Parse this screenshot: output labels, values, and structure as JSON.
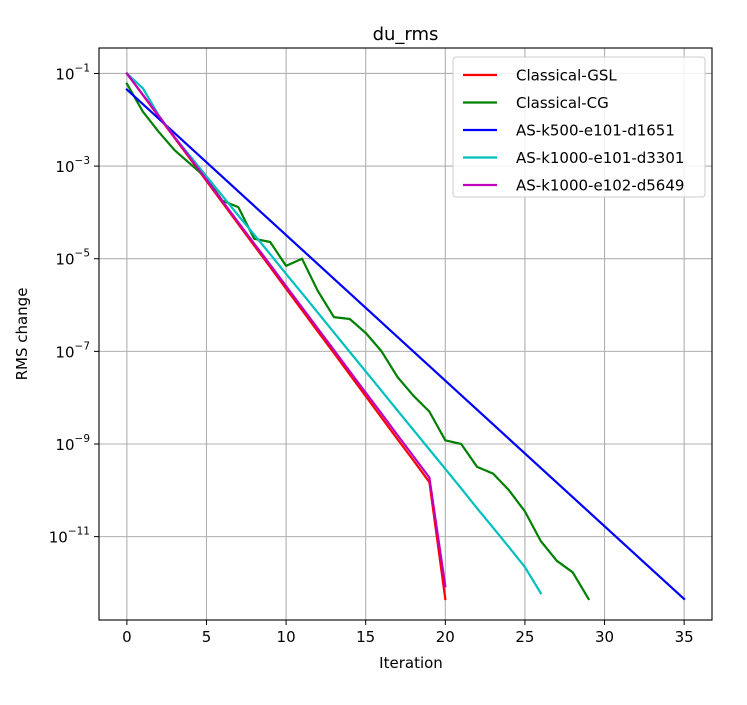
{
  "chart_data": {
    "type": "line",
    "title": "du_rms",
    "xlabel": "Iteration",
    "ylabel": "RMS change",
    "xlim": [
      -1.75,
      36.75
    ],
    "ylim_log10": [
      -12.8,
      -0.45
    ],
    "yscale": "log",
    "grid": true,
    "legend_position": "top-right",
    "x_ticks": [
      0,
      5,
      10,
      15,
      20,
      25,
      30,
      35
    ],
    "x_tick_labels": [
      "0",
      "5",
      "10",
      "15",
      "20",
      "25",
      "30",
      "35"
    ],
    "y_ticks": [
      {
        "base": "10",
        "exp": "−1",
        "value": 0.1
      },
      {
        "base": "10",
        "exp": "−3",
        "value": 0.001
      },
      {
        "base": "10",
        "exp": "−5",
        "value": 1e-05
      },
      {
        "base": "10",
        "exp": "−7",
        "value": 1e-07
      },
      {
        "base": "10",
        "exp": "−9",
        "value": 1e-09
      },
      {
        "base": "10",
        "exp": "−11",
        "value": 1e-11
      }
    ],
    "series": [
      {
        "name": "Classical-GSL",
        "color": "#ff0000",
        "x": [
          0,
          1,
          2,
          3,
          4,
          5,
          6,
          7,
          8,
          9,
          10,
          11,
          12,
          13,
          14,
          15,
          16,
          17,
          18,
          19,
          20
        ],
        "y": [
          0.1,
          0.0343,
          0.0118,
          0.00404,
          0.00139,
          0.000476,
          0.000163,
          5.6e-05,
          1.92e-05,
          6.6e-06,
          2.26e-06,
          7.8e-07,
          2.67e-07,
          9.2e-08,
          3.15e-08,
          1.08e-08,
          3.7e-09,
          1.27e-09,
          4.4e-10,
          1.5e-10,
          4.5e-13
        ]
      },
      {
        "name": "Classical-CG",
        "color": "#008000",
        "x": [
          0,
          1,
          2,
          3,
          4,
          5,
          6,
          7,
          8,
          9,
          10,
          11,
          12,
          13,
          14,
          15,
          16,
          17,
          18,
          19,
          20,
          21,
          22,
          23,
          24,
          25,
          26,
          27,
          28,
          29
        ],
        "y": [
          0.06,
          0.015,
          0.0055,
          0.0022,
          0.0011,
          0.00055,
          0.00018,
          0.00013,
          2.7e-05,
          2.3e-05,
          7e-06,
          1e-05,
          2e-06,
          5.5e-07,
          5e-07,
          2.5e-07,
          1e-07,
          2.8e-08,
          1.1e-08,
          5e-09,
          1.2e-09,
          1e-09,
          3.2e-10,
          2.3e-10,
          1e-10,
          3.5e-11,
          8e-12,
          3e-12,
          1.7e-12,
          4.5e-13
        ]
      },
      {
        "name": "AS-k500-e101-d1651",
        "color": "#0000ff",
        "x": [
          0,
          35
        ],
        "y": [
          0.045,
          4.5e-13
        ]
      },
      {
        "name": "AS-k1000-e101-d3301",
        "color": "#00bfbf",
        "x": [
          0,
          1,
          2,
          3,
          4,
          5,
          6,
          7,
          8,
          9,
          10,
          11,
          12,
          13,
          14,
          15,
          16,
          17,
          18,
          19,
          20,
          21,
          22,
          23,
          24,
          25,
          26
        ],
        "y": [
          0.1,
          0.048,
          0.0125,
          0.0042,
          0.0016,
          0.0006,
          0.000228,
          8.6e-05,
          3.3e-05,
          1.25e-05,
          4.7e-06,
          1.8e-06,
          6.8e-07,
          2.57e-07,
          9.7e-08,
          3.7e-08,
          1.4e-08,
          5.3e-09,
          2e-09,
          7.6e-10,
          2.9e-10,
          1.1e-10,
          4.1e-11,
          1.56e-11,
          5.9e-12,
          2.2e-12,
          6e-13
        ]
      },
      {
        "name": "AS-k1000-e102-d5649",
        "color": "#bf00bf",
        "x": [
          0,
          1,
          2,
          3,
          4,
          5,
          6,
          7,
          8,
          9,
          10,
          11,
          12,
          13,
          14,
          15,
          16,
          17,
          18,
          19,
          20
        ],
        "y": [
          0.1,
          0.035,
          0.0122,
          0.0042,
          0.00146,
          0.00051,
          0.000176,
          6.1e-05,
          2.12e-05,
          7.4e-06,
          2.55e-06,
          8.9e-07,
          3.1e-07,
          1.07e-07,
          3.7e-08,
          1.29e-08,
          4.5e-09,
          1.56e-09,
          5.4e-10,
          1.88e-10,
          8.5e-13
        ]
      }
    ]
  }
}
